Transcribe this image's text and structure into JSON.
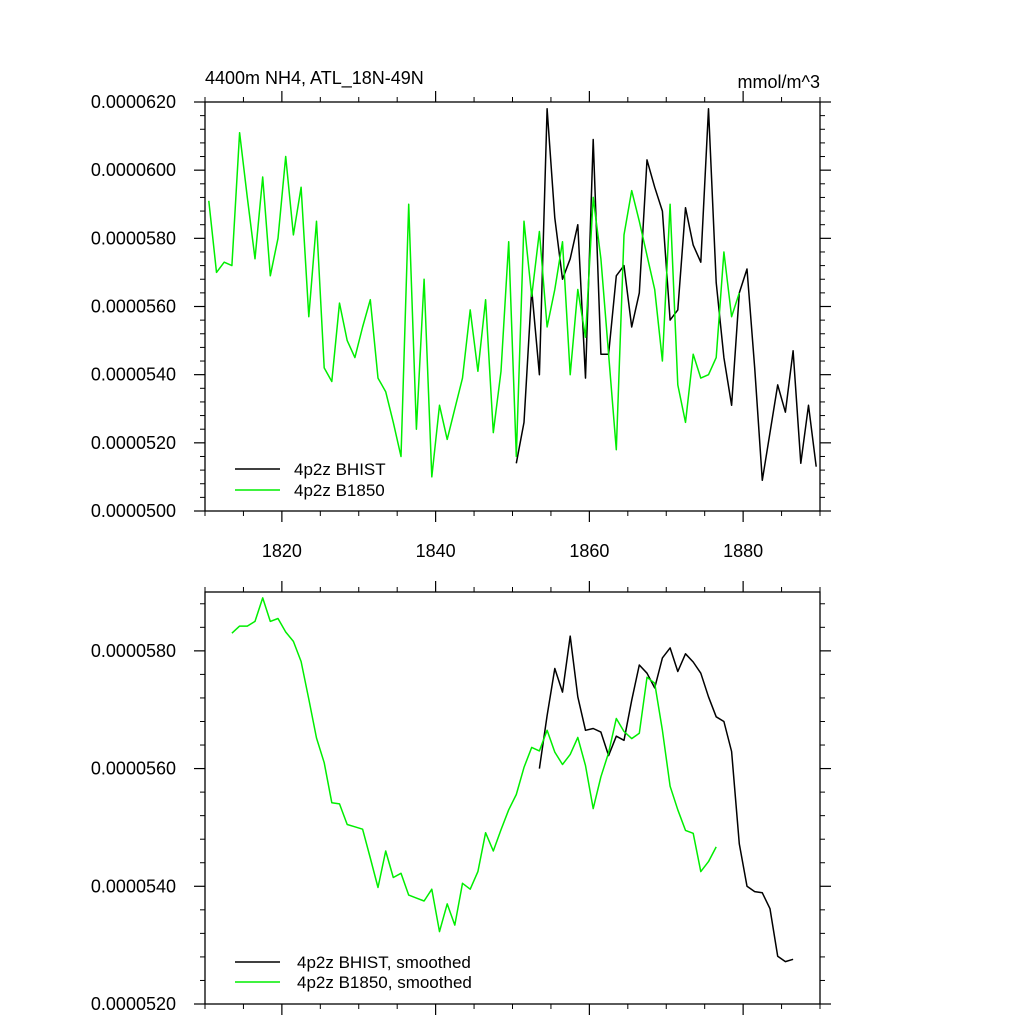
{
  "chart_data": [
    {
      "type": "line",
      "title": "4400m NH4, ATL_18N-49N",
      "units": "mmol/m^3",
      "xlim": [
        1810,
        1890
      ],
      "ylim": [
        5e-05,
        6.2e-05
      ],
      "x_ticks": [
        1820,
        1840,
        1860,
        1880
      ],
      "x_tick_labels": [
        "1820",
        "1840",
        "1860",
        "1880"
      ],
      "y_ticks": [
        5e-05,
        5.2e-05,
        5.4e-05,
        5.6e-05,
        5.8e-05,
        6e-05,
        6.2e-05
      ],
      "y_tick_labels": [
        "0.0000500",
        "0.0000520",
        "0.0000540",
        "0.0000560",
        "0.0000580",
        "0.0000600",
        "0.0000620"
      ],
      "legend_position": "bottom-left",
      "grid": false,
      "series": [
        {
          "name": "4p2z BHIST",
          "color": "#000000",
          "x": [
            1850.5,
            1851.5,
            1852.5,
            1853.5,
            1854.5,
            1855.5,
            1856.5,
            1857.5,
            1858.5,
            1859.5,
            1860.5,
            1861.5,
            1862.5,
            1863.5,
            1864.5,
            1865.5,
            1866.5,
            1867.5,
            1868.5,
            1869.5,
            1870.5,
            1871.5,
            1872.5,
            1873.5,
            1874.5,
            1875.5,
            1876.5,
            1877.5,
            1878.5,
            1879.5,
            1880.5,
            1881.5,
            1882.5,
            1883.5,
            1884.5,
            1885.5,
            1886.5,
            1887.5,
            1888.5,
            1889.5
          ],
          "y": [
            5.14e-05,
            5.26e-05,
            5.65e-05,
            5.4e-05,
            6.18e-05,
            5.86e-05,
            5.68e-05,
            5.74e-05,
            5.84e-05,
            5.39e-05,
            6.09e-05,
            5.46e-05,
            5.46e-05,
            5.69e-05,
            5.72e-05,
            5.54e-05,
            5.64e-05,
            6.03e-05,
            5.95e-05,
            5.88e-05,
            5.56e-05,
            5.59e-05,
            5.89e-05,
            5.78e-05,
            5.73e-05,
            6.18e-05,
            5.67e-05,
            5.45e-05,
            5.31e-05,
            5.64e-05,
            5.71e-05,
            5.42e-05,
            5.09e-05,
            5.23e-05,
            5.37e-05,
            5.29e-05,
            5.47e-05,
            5.14e-05,
            5.31e-05,
            5.13e-05
          ]
        },
        {
          "name": "4p2z B1850",
          "color": "#00ee00",
          "x": [
            1810.5,
            1811.5,
            1812.5,
            1813.5,
            1814.5,
            1815.5,
            1816.5,
            1817.5,
            1818.5,
            1819.5,
            1820.5,
            1821.5,
            1822.5,
            1823.5,
            1824.5,
            1825.5,
            1826.5,
            1827.5,
            1828.5,
            1829.5,
            1830.5,
            1831.5,
            1832.5,
            1833.5,
            1834.5,
            1835.5,
            1836.5,
            1837.5,
            1838.5,
            1839.5,
            1840.5,
            1841.5,
            1842.5,
            1843.5,
            1844.5,
            1845.5,
            1846.5,
            1847.5,
            1848.5,
            1849.5,
            1850.5,
            1851.5,
            1852.5,
            1853.5,
            1854.5,
            1855.5,
            1856.5,
            1857.5,
            1858.5,
            1859.5,
            1860.5,
            1861.5,
            1862.5,
            1863.5,
            1864.5,
            1865.5,
            1866.5,
            1867.5,
            1868.5,
            1869.5,
            1870.5,
            1871.5,
            1872.5,
            1873.5,
            1874.5,
            1875.5,
            1876.5,
            1877.5,
            1878.5,
            1879.5
          ],
          "y": [
            5.91e-05,
            5.7e-05,
            5.73e-05,
            5.72e-05,
            6.11e-05,
            5.92e-05,
            5.74e-05,
            5.98e-05,
            5.69e-05,
            5.8e-05,
            6.04e-05,
            5.81e-05,
            5.95e-05,
            5.57e-05,
            5.85e-05,
            5.42e-05,
            5.38e-05,
            5.61e-05,
            5.5e-05,
            5.45e-05,
            5.54e-05,
            5.62e-05,
            5.39e-05,
            5.35e-05,
            5.26e-05,
            5.16e-05,
            5.9e-05,
            5.24e-05,
            5.68e-05,
            5.1e-05,
            5.31e-05,
            5.21e-05,
            5.3e-05,
            5.39e-05,
            5.59e-05,
            5.41e-05,
            5.62e-05,
            5.23e-05,
            5.41e-05,
            5.79e-05,
            5.16e-05,
            5.85e-05,
            5.63e-05,
            5.82e-05,
            5.54e-05,
            5.65e-05,
            5.79e-05,
            5.4e-05,
            5.65e-05,
            5.51e-05,
            5.92e-05,
            5.74e-05,
            5.46e-05,
            5.18e-05,
            5.81e-05,
            5.94e-05,
            5.85e-05,
            5.75e-05,
            5.65e-05,
            5.44e-05,
            5.9e-05,
            5.37e-05,
            5.26e-05,
            5.46e-05,
            5.39e-05,
            5.4e-05,
            5.45e-05,
            5.76e-05,
            5.57e-05,
            5.64e-05
          ]
        }
      ]
    },
    {
      "type": "line",
      "xlim": [
        1810,
        1890
      ],
      "ylim": [
        5.2e-05,
        5.9e-05
      ],
      "x_ticks": [
        1820,
        1840,
        1860,
        1880
      ],
      "y_ticks": [
        5.2e-05,
        5.4e-05,
        5.6e-05,
        5.8e-05
      ],
      "y_tick_labels": [
        "0.0000520",
        "0.0000540",
        "0.0000560",
        "0.0000580"
      ],
      "legend_position": "bottom-left",
      "grid": false,
      "series": [
        {
          "name": "4p2z BHIST, smoothed",
          "color": "#000000",
          "x": [
            1853.5,
            1854.5,
            1855.5,
            1856.5,
            1857.5,
            1858.5,
            1859.5,
            1860.5,
            1861.5,
            1862.5,
            1863.5,
            1864.5,
            1865.5,
            1866.5,
            1867.5,
            1868.5,
            1869.5,
            1870.5,
            1871.5,
            1872.5,
            1873.5,
            1874.5,
            1875.5,
            1876.5,
            1877.5,
            1878.5,
            1879.5,
            1880.5,
            1881.5,
            1882.5,
            1883.5,
            1884.5,
            1885.5,
            1886.5
          ],
          "y": [
            5.6e-05,
            5.69e-05,
            5.77e-05,
            5.73e-05,
            5.825e-05,
            5.722e-05,
            5.665e-05,
            5.668e-05,
            5.662e-05,
            5.622e-05,
            5.655e-05,
            5.648e-05,
            5.716e-05,
            5.776e-05,
            5.762e-05,
            5.737e-05,
            5.788e-05,
            5.805e-05,
            5.765e-05,
            5.795e-05,
            5.781e-05,
            5.762e-05,
            5.722e-05,
            5.688e-05,
            5.68e-05,
            5.629e-05,
            5.472e-05,
            5.4e-05,
            5.391e-05,
            5.389e-05,
            5.362e-05,
            5.281e-05,
            5.272e-05,
            5.276e-05
          ]
        },
        {
          "name": "4p2z B1850, smoothed",
          "color": "#00ee00",
          "x": [
            1813.5,
            1814.5,
            1815.5,
            1816.5,
            1817.5,
            1818.5,
            1819.5,
            1820.5,
            1821.5,
            1822.5,
            1823.5,
            1824.5,
            1825.5,
            1826.5,
            1827.5,
            1828.5,
            1829.5,
            1830.5,
            1831.5,
            1832.5,
            1833.5,
            1834.5,
            1835.5,
            1836.5,
            1837.5,
            1838.5,
            1839.5,
            1840.5,
            1841.5,
            1842.5,
            1843.5,
            1844.5,
            1845.5,
            1846.5,
            1847.5,
            1848.5,
            1849.5,
            1850.5,
            1851.5,
            1852.5,
            1853.5,
            1854.5,
            1855.5,
            1856.5,
            1857.5,
            1858.5,
            1859.5,
            1860.5,
            1861.5,
            1862.5,
            1863.5,
            1864.5,
            1865.5,
            1866.5,
            1867.5,
            1868.5,
            1869.5,
            1870.5,
            1871.5,
            1872.5,
            1873.5,
            1874.5,
            1875.5,
            1876.5
          ],
          "y": [
            5.83e-05,
            5.842e-05,
            5.842e-05,
            5.85e-05,
            5.89e-05,
            5.85e-05,
            5.855e-05,
            5.832e-05,
            5.816e-05,
            5.782e-05,
            5.718e-05,
            5.652e-05,
            5.61e-05,
            5.542e-05,
            5.54e-05,
            5.505e-05,
            5.501e-05,
            5.497e-05,
            5.448e-05,
            5.398e-05,
            5.46e-05,
            5.415e-05,
            5.422e-05,
            5.385e-05,
            5.38e-05,
            5.375e-05,
            5.395e-05,
            5.323e-05,
            5.37e-05,
            5.334e-05,
            5.405e-05,
            5.395e-05,
            5.425e-05,
            5.491e-05,
            5.46e-05,
            5.496e-05,
            5.53e-05,
            5.556e-05,
            5.602e-05,
            5.636e-05,
            5.63e-05,
            5.665e-05,
            5.628e-05,
            5.607e-05,
            5.624e-05,
            5.653e-05,
            5.605e-05,
            5.532e-05,
            5.586e-05,
            5.627e-05,
            5.685e-05,
            5.663e-05,
            5.651e-05,
            5.66e-05,
            5.755e-05,
            5.745e-05,
            5.665e-05,
            5.57e-05,
            5.53e-05,
            5.495e-05,
            5.49e-05,
            5.425e-05,
            5.442e-05,
            5.467e-05
          ]
        }
      ]
    }
  ]
}
